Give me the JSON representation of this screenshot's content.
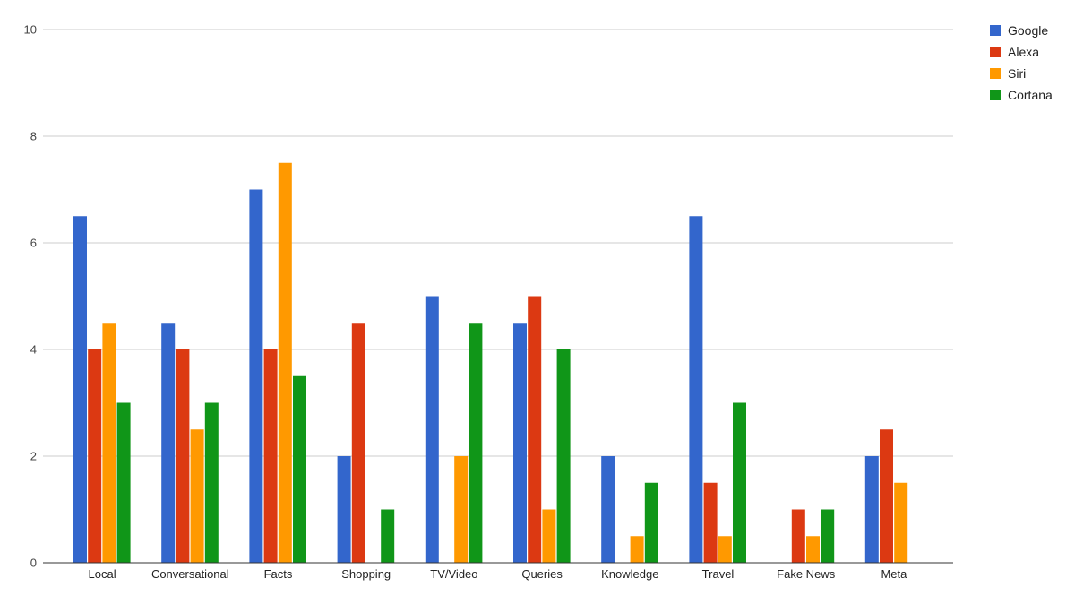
{
  "chart_data": {
    "type": "bar",
    "title": "",
    "xlabel": "",
    "ylabel": "",
    "ylim": [
      0,
      10
    ],
    "yticks": [
      0,
      2,
      4,
      6,
      8,
      10
    ],
    "grid": true,
    "legend_position": "top-right",
    "categories": [
      "Local",
      "Conversational",
      "Facts",
      "Shopping",
      "TV/Video",
      "Queries",
      "Knowledge",
      "Travel",
      "Fake News",
      "Meta"
    ],
    "series": [
      {
        "name": "Google",
        "color": "#3366cc",
        "values": [
          6.5,
          4.5,
          7,
          2,
          5,
          4.5,
          2,
          6.5,
          0,
          2
        ]
      },
      {
        "name": "Alexa",
        "color": "#dc3912",
        "values": [
          4,
          4,
          4,
          4.5,
          0,
          5,
          0,
          1.5,
          1,
          2.5
        ]
      },
      {
        "name": "Siri",
        "color": "#ff9900",
        "values": [
          4.5,
          2.5,
          7.5,
          0,
          2,
          1,
          0.5,
          0.5,
          0.5,
          1.5
        ]
      },
      {
        "name": "Cortana",
        "color": "#109618",
        "values": [
          3,
          3,
          3.5,
          1,
          4.5,
          4,
          1.5,
          3,
          1,
          0
        ]
      }
    ]
  }
}
